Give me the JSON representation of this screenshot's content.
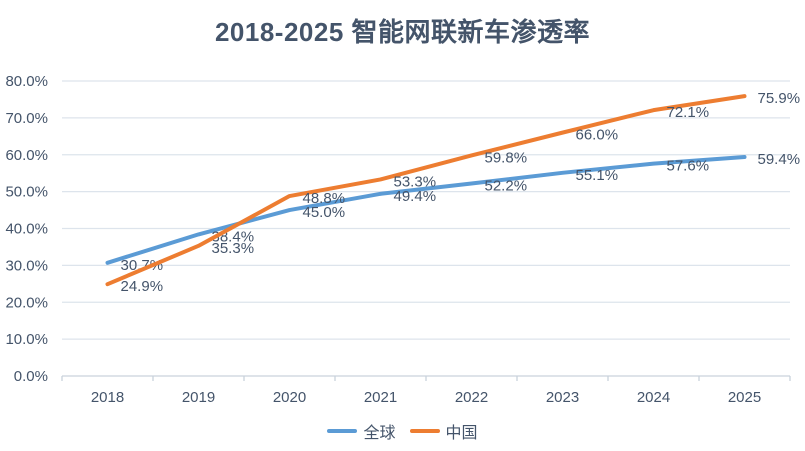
{
  "chart_data": {
    "type": "line",
    "title": "2018-2025 智能网联新车渗透率",
    "categories": [
      "2018",
      "2019",
      "2020",
      "2021",
      "2022",
      "2023",
      "2024",
      "2025"
    ],
    "series": [
      {
        "name": "全球",
        "color": "#5B9BD5",
        "values": [
          30.7,
          38.4,
          45.0,
          49.4,
          52.2,
          55.1,
          57.6,
          59.4
        ],
        "labels": [
          "30.7%",
          "38.4%",
          "45.0%",
          "49.4%",
          "52.2%",
          "55.1%",
          "57.6%",
          "59.4%"
        ]
      },
      {
        "name": "中国",
        "color": "#ED7D31",
        "values": [
          24.9,
          35.3,
          48.8,
          53.3,
          59.8,
          66.0,
          72.1,
          75.9
        ],
        "labels": [
          "24.9%",
          "35.3%",
          "48.8%",
          "53.3%",
          "59.8%",
          "66.0%",
          "72.1%",
          "75.9%"
        ]
      }
    ],
    "xlabel": "",
    "ylabel": "",
    "ylim": [
      0,
      80
    ],
    "ytick_step": 10,
    "ytick_labels": [
      "0.0%",
      "10.0%",
      "20.0%",
      "30.0%",
      "40.0%",
      "50.0%",
      "60.0%",
      "70.0%",
      "80.0%"
    ],
    "grid": true,
    "data_labels": true,
    "legend_position": "bottom",
    "style": {
      "text_color": "#44546A",
      "gridline_color": "#DDE4EC",
      "axis_line_color": "#C9D2DC",
      "background": "#FFFFFF"
    }
  }
}
